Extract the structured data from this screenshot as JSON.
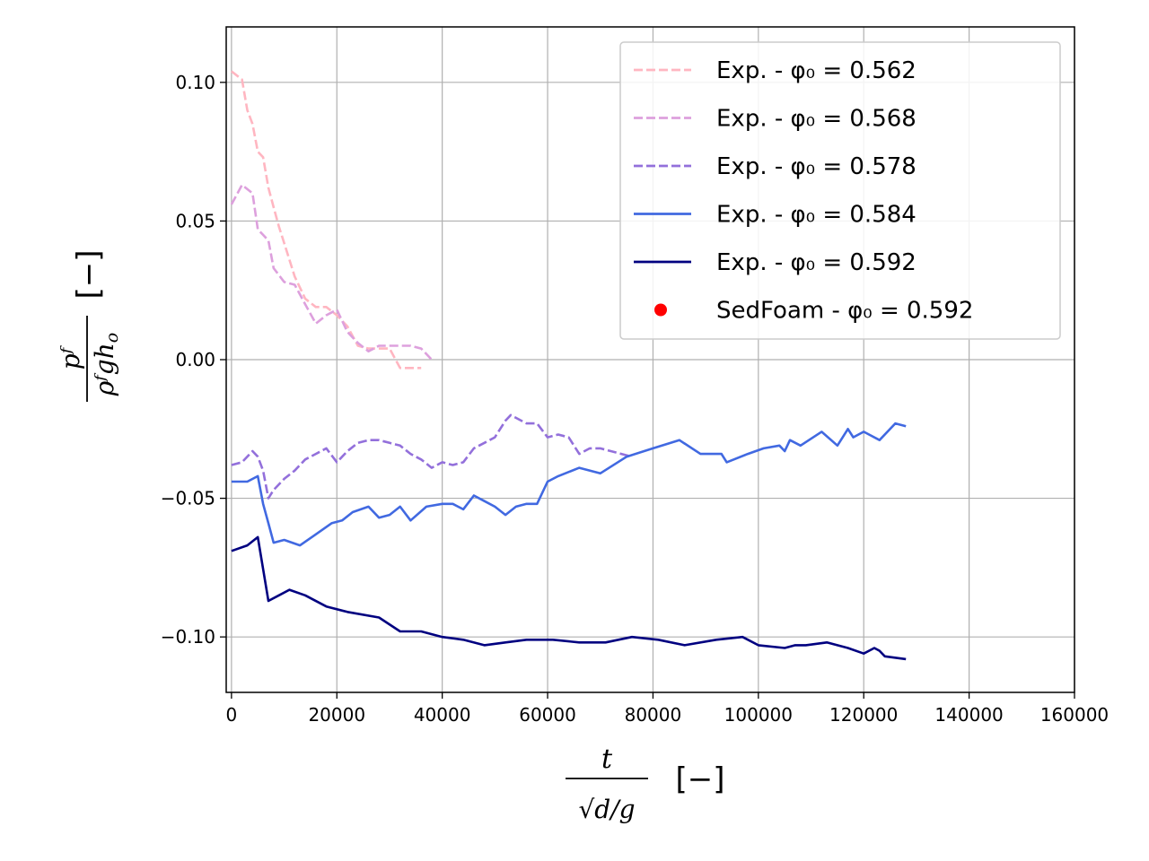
{
  "chart_data": {
    "type": "line",
    "title": "",
    "xlabel": {
      "numerator": "t",
      "denominator": "√d/g",
      "unit": "[−]"
    },
    "ylabel": {
      "numerator": "pᶠ",
      "denominator": "ρᶠgh",
      "denominator_sub": "o",
      "unit": "[−]"
    },
    "xlim": [
      -1000,
      160000
    ],
    "ylim": [
      -0.12,
      0.12
    ],
    "xticks": [
      0,
      20000,
      40000,
      60000,
      80000,
      100000,
      120000,
      140000,
      160000
    ],
    "xtick_labels": [
      "0",
      "20000",
      "40000",
      "60000",
      "80000",
      "100000",
      "120000",
      "140000",
      "160000"
    ],
    "yticks": [
      -0.1,
      -0.05,
      0.0,
      0.05,
      0.1
    ],
    "ytick_labels": [
      "−0.10",
      "−0.05",
      "0.00",
      "0.05",
      "0.10"
    ],
    "grid": true,
    "legend_position": "top-right",
    "series": [
      {
        "name": "Exp. - φ₀ = 0.562",
        "color": "#ffb6c1",
        "style": "dashed",
        "x": [
          0,
          2000,
          3000,
          4000,
          5000,
          6000,
          7000,
          8000,
          9000,
          10000,
          12000,
          14000,
          16000,
          18000,
          20000,
          22000,
          24000,
          26000,
          28000,
          30000,
          32000,
          34000,
          36000
        ],
        "y": [
          0.104,
          0.101,
          0.09,
          0.085,
          0.075,
          0.073,
          0.062,
          0.055,
          0.048,
          0.042,
          0.03,
          0.022,
          0.019,
          0.019,
          0.016,
          0.012,
          0.005,
          0.004,
          0.004,
          0.004,
          -0.003,
          -0.003,
          -0.003
        ]
      },
      {
        "name": "Exp. - φ₀ = 0.568",
        "color": "#dda0dd",
        "style": "dashed",
        "x": [
          0,
          2000,
          4000,
          5000,
          6000,
          7000,
          8000,
          10000,
          12000,
          14000,
          16000,
          18000,
          20000,
          22000,
          24000,
          26000,
          28000,
          30000,
          32000,
          34000,
          36000,
          38000
        ],
        "y": [
          0.056,
          0.063,
          0.06,
          0.047,
          0.045,
          0.043,
          0.033,
          0.028,
          0.027,
          0.02,
          0.013,
          0.016,
          0.018,
          0.01,
          0.006,
          0.003,
          0.005,
          0.005,
          0.005,
          0.005,
          0.004,
          0.0
        ]
      },
      {
        "name": "Exp. - φ₀ = 0.578",
        "color": "#9370db",
        "style": "dashed",
        "x": [
          0,
          2000,
          4000,
          5000,
          6000,
          7000,
          8000,
          10000,
          12000,
          14000,
          16000,
          18000,
          20000,
          22000,
          24000,
          26000,
          28000,
          30000,
          32000,
          34000,
          36000,
          38000,
          40000,
          42000,
          44000,
          46000,
          48000,
          50000,
          52000,
          53000,
          54000,
          56000,
          58000,
          60000,
          62000,
          64000,
          66000,
          68000,
          70000,
          72000,
          74000,
          76000
        ],
        "y": [
          -0.038,
          -0.037,
          -0.033,
          -0.035,
          -0.04,
          -0.05,
          -0.047,
          -0.043,
          -0.04,
          -0.036,
          -0.034,
          -0.032,
          -0.037,
          -0.033,
          -0.03,
          -0.029,
          -0.029,
          -0.03,
          -0.031,
          -0.034,
          -0.036,
          -0.039,
          -0.037,
          -0.038,
          -0.037,
          -0.032,
          -0.03,
          -0.028,
          -0.022,
          -0.02,
          -0.021,
          -0.023,
          -0.023,
          -0.028,
          -0.027,
          -0.028,
          -0.034,
          -0.032,
          -0.032,
          -0.033,
          -0.034,
          -0.035
        ]
      },
      {
        "name": "Exp. - φ₀ = 0.584",
        "color": "#4169e1",
        "style": "solid",
        "x": [
          0,
          3000,
          5000,
          6000,
          7000,
          8000,
          10000,
          13000,
          16000,
          19000,
          21000,
          23000,
          26000,
          28000,
          30000,
          32000,
          34000,
          37000,
          40000,
          42000,
          44000,
          46000,
          48000,
          50000,
          52000,
          54000,
          56000,
          58000,
          60000,
          62000,
          66000,
          70000,
          75000,
          80000,
          85000,
          89000,
          93000,
          94000,
          98000,
          101000,
          104000,
          105000,
          106000,
          108000,
          112000,
          115000,
          117000,
          118000,
          120000,
          121000,
          123000,
          126000,
          128000
        ],
        "y": [
          -0.044,
          -0.044,
          -0.042,
          -0.052,
          -0.059,
          -0.066,
          -0.065,
          -0.067,
          -0.063,
          -0.059,
          -0.058,
          -0.055,
          -0.053,
          -0.057,
          -0.056,
          -0.053,
          -0.058,
          -0.053,
          -0.052,
          -0.052,
          -0.054,
          -0.049,
          -0.051,
          -0.053,
          -0.056,
          -0.053,
          -0.052,
          -0.052,
          -0.044,
          -0.042,
          -0.039,
          -0.041,
          -0.035,
          -0.032,
          -0.029,
          -0.034,
          -0.034,
          -0.037,
          -0.034,
          -0.032,
          -0.031,
          -0.033,
          -0.029,
          -0.031,
          -0.026,
          -0.031,
          -0.025,
          -0.028,
          -0.026,
          -0.027,
          -0.029,
          -0.023,
          -0.024
        ]
      },
      {
        "name": "Exp. - φ₀ = 0.592",
        "color": "#000080",
        "style": "solid",
        "x": [
          0,
          3000,
          5000,
          7000,
          9000,
          11000,
          14000,
          18000,
          22000,
          28000,
          32000,
          36000,
          40000,
          44000,
          48000,
          52000,
          56000,
          61000,
          66000,
          71000,
          76000,
          81000,
          86000,
          92000,
          97000,
          100000,
          105000,
          107000,
          109000,
          113000,
          117000,
          120000,
          121000,
          122000,
          123000,
          124000,
          128000
        ],
        "y": [
          -0.069,
          -0.067,
          -0.064,
          -0.087,
          -0.085,
          -0.083,
          -0.085,
          -0.089,
          -0.091,
          -0.093,
          -0.098,
          -0.098,
          -0.1,
          -0.101,
          -0.103,
          -0.102,
          -0.101,
          -0.101,
          -0.102,
          -0.102,
          -0.1,
          -0.101,
          -0.103,
          -0.101,
          -0.1,
          -0.103,
          -0.104,
          -0.103,
          -0.103,
          -0.102,
          -0.104,
          -0.106,
          -0.105,
          -0.104,
          -0.105,
          -0.107,
          -0.108
        ]
      },
      {
        "name": "SedFoam  - φ₀ = 0.592",
        "color": "#ff0000",
        "style": "marker",
        "x": [],
        "y": []
      }
    ]
  }
}
